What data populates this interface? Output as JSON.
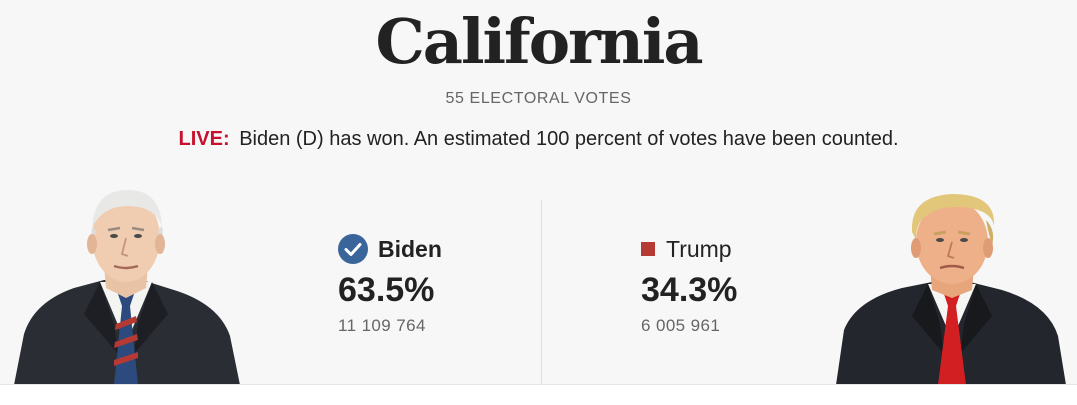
{
  "header": {
    "state": "California",
    "electoral_votes": "55 ELECTORAL VOTES",
    "live_label": "LIVE:",
    "status_text": "Biden (D) has won. An estimated 100 percent of votes have been counted."
  },
  "candidates": [
    {
      "name": "Biden",
      "percent": "63.5%",
      "votes": "11 109 764",
      "winner": true,
      "marker": "checkmark-icon",
      "color": "#3a659a"
    },
    {
      "name": "Trump",
      "percent": "34.3%",
      "votes": "6 005 961",
      "winner": false,
      "marker": "square-icon",
      "color": "#b53a34"
    }
  ],
  "colors": {
    "live": "#c8102e",
    "dem": "#3a659a",
    "rep": "#b53a34",
    "background": "#f7f7f7"
  }
}
